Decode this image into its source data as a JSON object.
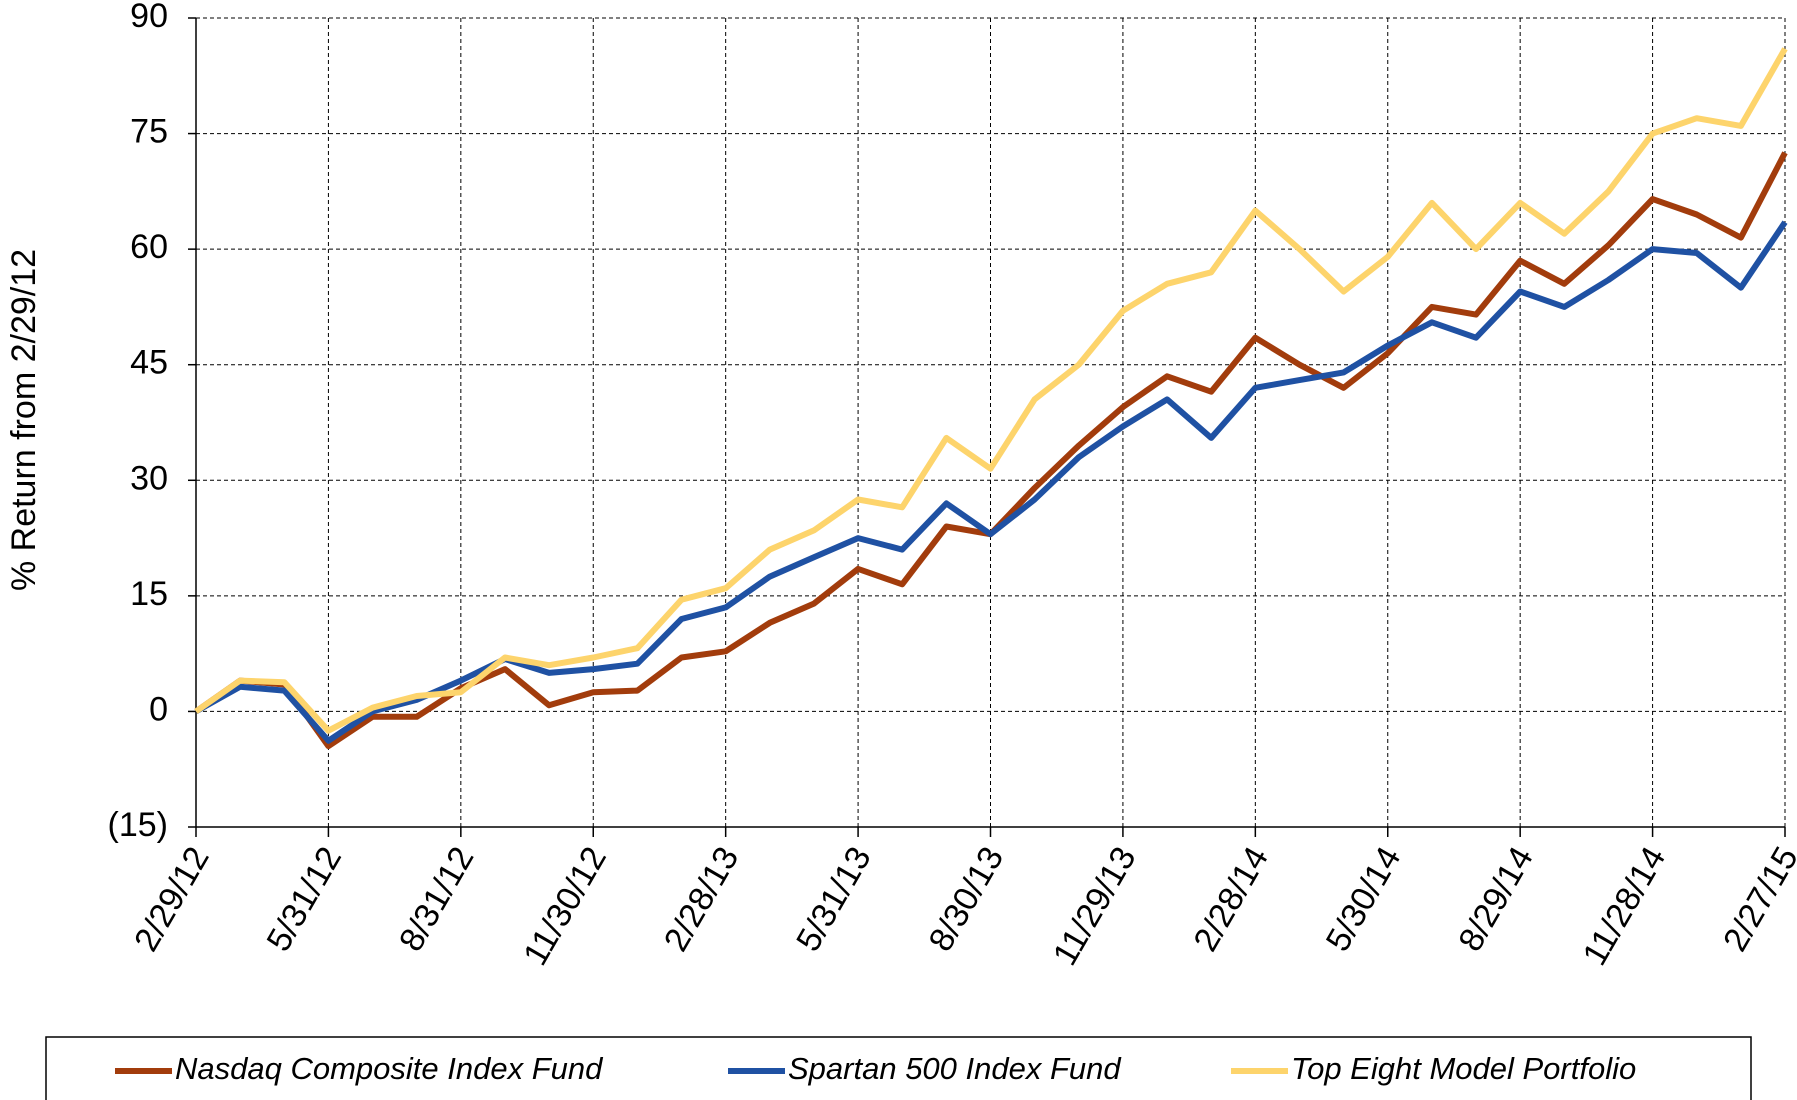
{
  "chart_data": {
    "type": "line",
    "ylabel": "% Return from 2/29/12",
    "categories": [
      "2/29/12",
      null,
      null,
      "5/31/12",
      null,
      null,
      "8/31/12",
      null,
      null,
      "11/30/12",
      null,
      null,
      "2/28/13",
      null,
      null,
      "5/31/13",
      null,
      null,
      "8/30/13",
      null,
      null,
      "11/29/13",
      null,
      null,
      "2/28/14",
      null,
      null,
      "5/30/14",
      null,
      null,
      "8/29/14",
      null,
      null,
      "11/28/14",
      null,
      null,
      "2/27/15"
    ],
    "series": [
      {
        "name": "Nasdaq Composite Index Fund",
        "color": "#a23c0c",
        "values": [
          0,
          4,
          3.5,
          -4.5,
          -0.7,
          -0.7,
          3,
          5.5,
          0.8,
          2.5,
          2.7,
          7,
          7.8,
          11.5,
          14,
          18.5,
          16.5,
          24,
          23,
          29,
          34.5,
          39.5,
          43.5,
          41.5,
          48.5,
          45,
          42,
          46.5,
          52.5,
          51.5,
          58.5,
          55.5,
          60.5,
          66.5,
          64.5,
          61.5,
          72.5
        ]
      },
      {
        "name": "Spartan 500 Index Fund",
        "color": "#1f51a3",
        "values": [
          0,
          3.2,
          2.7,
          -3.8,
          0,
          1.5,
          4,
          6.8,
          5,
          5.5,
          6.2,
          12,
          13.5,
          17.5,
          20,
          22.5,
          21,
          27,
          23,
          27.5,
          33,
          37,
          40.5,
          35.5,
          42,
          43,
          44,
          47.5,
          50.5,
          48.5,
          54.5,
          52.5,
          56,
          60,
          59.5,
          55,
          63.5
        ]
      },
      {
        "name": "Top Eight Model Portfolio",
        "color": "#fdd46c",
        "values": [
          0,
          4,
          3.8,
          -2.5,
          0.5,
          2,
          2.5,
          7,
          6,
          7,
          8.2,
          14.5,
          16,
          21,
          23.5,
          27.5,
          26.5,
          35.5,
          31.5,
          40.5,
          45,
          52,
          55.5,
          57,
          65,
          60,
          54.5,
          59,
          66,
          60,
          66,
          62,
          67.5,
          75,
          77,
          76,
          86
        ]
      }
    ],
    "ylim": [
      -15,
      90
    ],
    "yticks": [
      {
        "value": -15,
        "label": "(15)"
      },
      0,
      15,
      30,
      45,
      60,
      75,
      90
    ],
    "negative_tick_color": "#ff0000",
    "grid": true,
    "legend": "bottom"
  }
}
